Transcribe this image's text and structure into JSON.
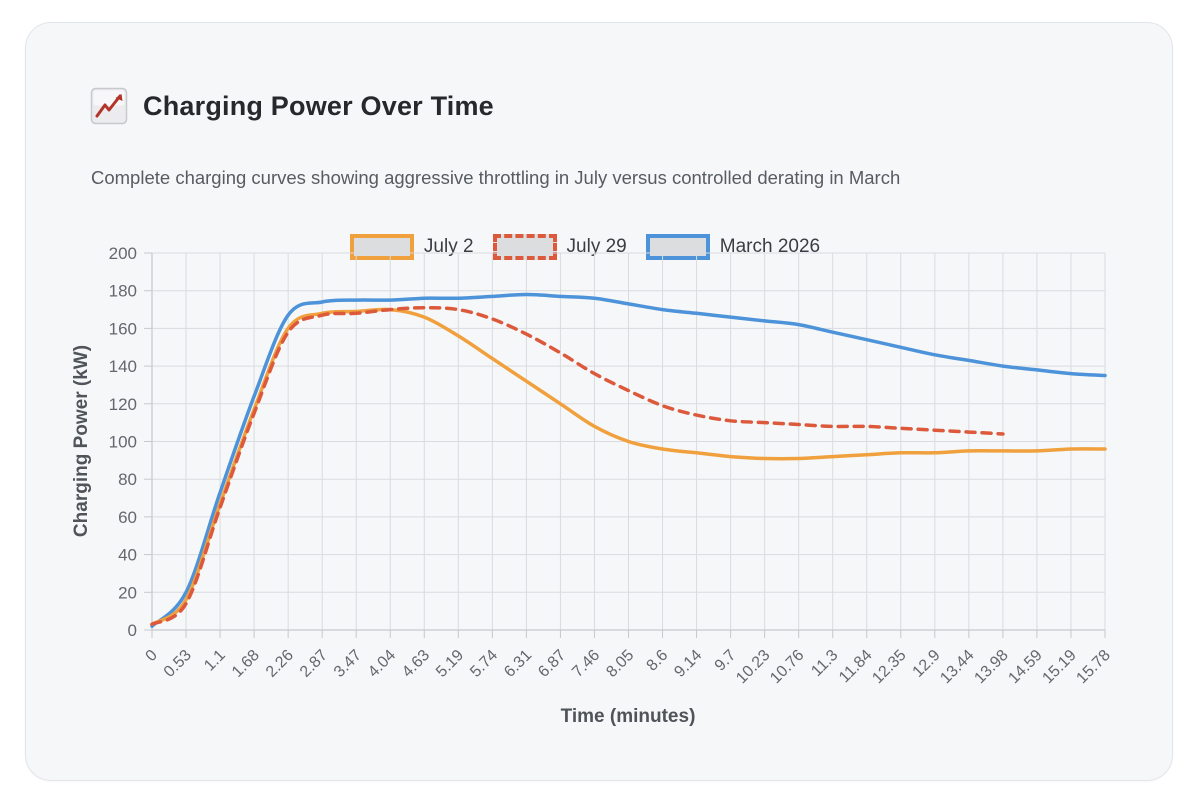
{
  "card": {
    "title": "Charging Power Over Time",
    "subtitle": "Complete charging curves showing aggressive throttling in July versus controlled derating in March"
  },
  "chart_data": {
    "type": "line",
    "title": "Charging Power Over Time",
    "xlabel": "Time (minutes)",
    "ylabel": "Charging Power (kW)",
    "ylim": [
      0,
      200
    ],
    "y_ticks": [
      0,
      20,
      40,
      60,
      80,
      100,
      120,
      140,
      160,
      180,
      200
    ],
    "grid": true,
    "legend_position": "top",
    "categories": [
      "0",
      "0.53",
      "1.1",
      "1.68",
      "2.26",
      "2.87",
      "3.47",
      "4.04",
      "4.63",
      "5.19",
      "5.74",
      "6.31",
      "6.87",
      "7.46",
      "8.05",
      "8.6",
      "9.14",
      "9.7",
      "10.23",
      "10.76",
      "11.3",
      "11.84",
      "12.35",
      "12.9",
      "13.44",
      "13.98",
      "14.59",
      "15.19",
      "15.78"
    ],
    "series": [
      {
        "name": "July 2",
        "color": "#F0A03C",
        "style": "solid",
        "values": [
          3,
          16,
          67,
          117,
          160,
          168,
          169,
          170,
          166,
          156,
          144,
          132,
          120,
          108,
          100,
          96,
          94,
          92,
          91,
          91,
          92,
          93,
          94,
          94,
          95,
          95,
          95,
          96,
          96
        ]
      },
      {
        "name": "July 29",
        "color": "#DC5A3B",
        "style": "dashed",
        "values": [
          3,
          14,
          65,
          115,
          158,
          167,
          168,
          170,
          171,
          170,
          165,
          157,
          147,
          136,
          127,
          119,
          114,
          111,
          110,
          109,
          108,
          108,
          107,
          106,
          105,
          104,
          null,
          null,
          null
        ]
      },
      {
        "name": "March 2026",
        "color": "#4D93D9",
        "style": "solid",
        "values": [
          2,
          20,
          73,
          124,
          167,
          174,
          175,
          175,
          176,
          176,
          177,
          178,
          177,
          176,
          173,
          170,
          168,
          166,
          164,
          162,
          158,
          154,
          150,
          146,
          143,
          140,
          138,
          136,
          135
        ]
      }
    ],
    "colors": {
      "grid": "#d9dbdf",
      "axis": "#c5c8cd",
      "legend_swatch_fill": "#dcdddf"
    }
  }
}
